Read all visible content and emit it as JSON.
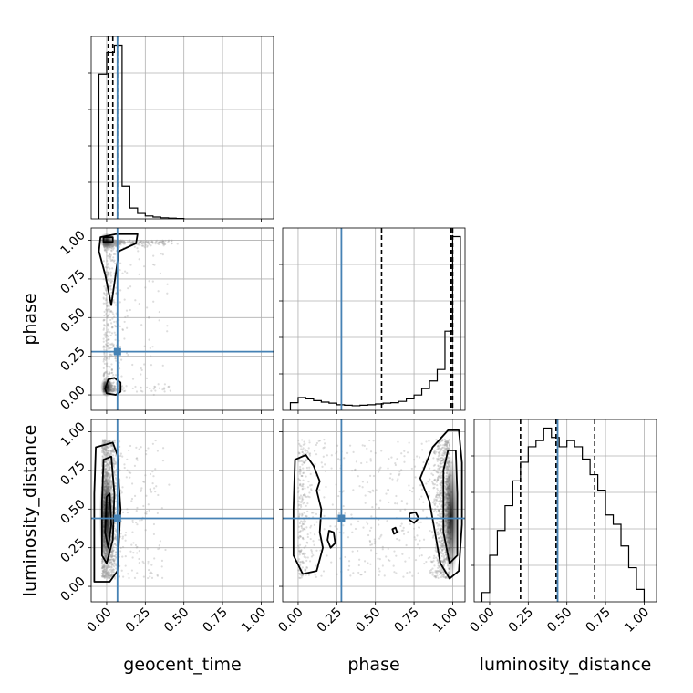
{
  "chart_data": {
    "type": "corner",
    "parameters": [
      "geocent_time",
      "phase",
      "luminosity_distance"
    ],
    "axis_labels": {
      "geocent_time": "geocent_time",
      "phase": "phase",
      "luminosity_distance": "luminosity_distance"
    },
    "range": [
      -0.1,
      1.08
    ],
    "ticks": [
      0.0,
      0.25,
      0.5,
      0.75,
      1.0
    ],
    "tick_labels": [
      "0.00",
      "0.25",
      "0.50",
      "0.75",
      "1.00"
    ],
    "grid": true,
    "colors": {
      "truth": "#4682b4",
      "hist": "#000000",
      "samples": "#9e9e9e",
      "contour": "#000000"
    },
    "truths": {
      "geocent_time": 0.07,
      "phase": 0.28,
      "luminosity_distance": 0.44
    },
    "histograms": {
      "geocent_time": {
        "edges": [
          -0.05,
          0.0,
          0.05,
          0.1,
          0.15,
          0.2,
          0.25,
          0.3,
          0.35,
          0.4,
          0.45,
          0.5
        ],
        "values": [
          4.0,
          4.6,
          4.8,
          0.9,
          0.3,
          0.15,
          0.08,
          0.05,
          0.03,
          0.02,
          0.01
        ],
        "quantiles": [
          0.01,
          0.04,
          0.07
        ]
      },
      "phase": {
        "edges": [
          -0.05,
          0.0,
          0.05,
          0.1,
          0.15,
          0.2,
          0.25,
          0.3,
          0.35,
          0.4,
          0.45,
          0.5,
          0.55,
          0.6,
          0.65,
          0.7,
          0.75,
          0.8,
          0.85,
          0.9,
          0.95,
          1.0,
          1.05
        ],
        "values": [
          0.3,
          0.5,
          0.45,
          0.38,
          0.32,
          0.28,
          0.22,
          0.2,
          0.18,
          0.2,
          0.22,
          0.25,
          0.28,
          0.3,
          0.35,
          0.45,
          0.6,
          0.85,
          1.15,
          1.6,
          3.1,
          6.8
        ],
        "quantiles": [
          0.54,
          0.99,
          1.0
        ]
      },
      "luminosity_distance": {
        "edges": [
          -0.05,
          0.0,
          0.05,
          0.1,
          0.15,
          0.2,
          0.25,
          0.3,
          0.35,
          0.4,
          0.45,
          0.5,
          0.55,
          0.6,
          0.65,
          0.7,
          0.75,
          0.8,
          0.85,
          0.9,
          0.95,
          1.0
        ],
        "values": [
          0.3,
          1.5,
          2.3,
          3.1,
          3.9,
          4.5,
          5.0,
          5.2,
          5.6,
          5.3,
          5.0,
          5.2,
          5.0,
          4.6,
          4.1,
          3.6,
          2.8,
          2.5,
          1.8,
          1.1,
          0.4
        ],
        "quantiles": [
          0.2,
          0.43,
          0.68
        ]
      }
    },
    "contours": [
      {
        "x": "geocent_time",
        "y": "phase",
        "levels": [
          [
            [
              -0.04,
              1.02
            ],
            [
              0.06,
              1.04
            ],
            [
              0.2,
              1.04
            ],
            [
              0.19,
              0.98
            ],
            [
              0.08,
              0.93
            ],
            [
              0.05,
              0.72
            ],
            [
              0.03,
              0.58
            ],
            [
              -0.01,
              0.78
            ],
            [
              -0.05,
              0.93
            ]
          ],
          [
            [
              0.0,
              0.01
            ],
            [
              0.06,
              0.0
            ],
            [
              0.09,
              0.02
            ],
            [
              0.09,
              0.08
            ],
            [
              0.05,
              0.11
            ],
            [
              0.01,
              0.1
            ],
            [
              -0.01,
              0.04
            ]
          ],
          [
            [
              -0.02,
              0.99
            ],
            [
              0.04,
              0.99
            ],
            [
              0.04,
              1.02
            ],
            [
              -0.02,
              1.02
            ]
          ]
        ]
      },
      {
        "x": "geocent_time",
        "y": "luminosity_distance",
        "levels": [
          [
            [
              -0.07,
              0.9
            ],
            [
              0.04,
              0.93
            ],
            [
              0.07,
              0.85
            ],
            [
              0.08,
              0.65
            ],
            [
              0.09,
              0.5
            ],
            [
              0.08,
              0.3
            ],
            [
              0.07,
              0.1
            ],
            [
              0.02,
              0.03
            ],
            [
              -0.08,
              0.03
            ],
            [
              -0.08,
              0.3
            ],
            [
              -0.08,
              0.6
            ]
          ],
          [
            [
              -0.02,
              0.82
            ],
            [
              0.03,
              0.84
            ],
            [
              0.05,
              0.6
            ],
            [
              0.04,
              0.3
            ],
            [
              0.0,
              0.15
            ],
            [
              -0.03,
              0.2
            ],
            [
              -0.03,
              0.55
            ]
          ],
          [
            [
              0.0,
              0.58
            ],
            [
              0.02,
              0.6
            ],
            [
              0.03,
              0.4
            ],
            [
              0.01,
              0.25
            ],
            [
              -0.01,
              0.35
            ]
          ]
        ]
      },
      {
        "x": "phase",
        "y": "luminosity_distance",
        "levels": [
          [
            [
              -0.02,
              0.82
            ],
            [
              0.05,
              0.85
            ],
            [
              0.1,
              0.78
            ],
            [
              0.14,
              0.68
            ],
            [
              0.12,
              0.62
            ],
            [
              0.15,
              0.5
            ],
            [
              0.14,
              0.35
            ],
            [
              0.16,
              0.25
            ],
            [
              0.12,
              0.1
            ],
            [
              0.03,
              0.08
            ],
            [
              -0.03,
              0.2
            ],
            [
              -0.03,
              0.5
            ]
          ],
          [
            [
              0.2,
              0.36
            ],
            [
              0.23,
              0.35
            ],
            [
              0.24,
              0.28
            ],
            [
              0.21,
              0.25
            ],
            [
              0.19,
              0.3
            ]
          ],
          [
            [
              0.79,
              0.7
            ],
            [
              0.87,
              0.9
            ],
            [
              0.97,
              1.01
            ],
            [
              1.04,
              1.01
            ],
            [
              1.06,
              0.8
            ],
            [
              1.06,
              0.4
            ],
            [
              1.04,
              0.1
            ],
            [
              0.98,
              0.05
            ],
            [
              0.92,
              0.15
            ],
            [
              0.88,
              0.38
            ],
            [
              0.85,
              0.55
            ]
          ],
          [
            [
              0.94,
              0.75
            ],
            [
              0.97,
              0.88
            ],
            [
              1.02,
              0.88
            ],
            [
              1.03,
              0.6
            ],
            [
              1.03,
              0.2
            ],
            [
              0.98,
              0.15
            ],
            [
              0.94,
              0.35
            ]
          ],
          [
            [
              0.72,
              0.47
            ],
            [
              0.76,
              0.48
            ],
            [
              0.78,
              0.44
            ],
            [
              0.75,
              0.41
            ],
            [
              0.72,
              0.43
            ]
          ],
          [
            [
              0.61,
              0.37
            ],
            [
              0.63,
              0.38
            ],
            [
              0.64,
              0.35
            ],
            [
              0.62,
              0.34
            ]
          ]
        ]
      }
    ],
    "density_peaks": [
      {
        "x": "geocent_time",
        "y": "phase",
        "cx": 0.0,
        "cy": 1.0,
        "sx": 0.03,
        "sy": 0.03
      },
      {
        "x": "geocent_time",
        "y": "phase",
        "cx": 0.0,
        "cy": 0.05,
        "sx": 0.025,
        "sy": 0.04
      },
      {
        "x": "geocent_time",
        "y": "luminosity_distance",
        "cx": 0.0,
        "cy": 0.45,
        "sx": 0.03,
        "sy": 0.2
      },
      {
        "x": "phase",
        "y": "luminosity_distance",
        "cx": 0.99,
        "cy": 0.45,
        "sx": 0.03,
        "sy": 0.25
      }
    ]
  }
}
